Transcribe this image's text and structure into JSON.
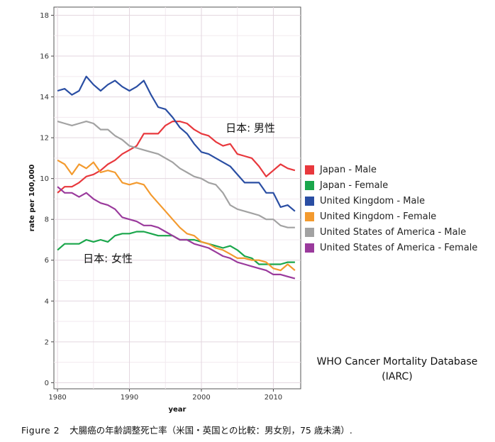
{
  "chart_data": {
    "type": "line",
    "title": "",
    "xlabel": "year",
    "ylabel": "rate per 100,000",
    "xlim": [
      1979.5,
      2013.8
    ],
    "ylim": [
      -0.3,
      18.4
    ],
    "xticks": [
      1980,
      1990,
      2000,
      2010
    ],
    "yticks": [
      0,
      2,
      4,
      6,
      8,
      10,
      12,
      14,
      16,
      18
    ],
    "x": [
      1980,
      1981,
      1982,
      1983,
      1984,
      1985,
      1986,
      1987,
      1988,
      1989,
      1990,
      1991,
      1992,
      1993,
      1994,
      1995,
      1996,
      1997,
      1998,
      1999,
      2000,
      2001,
      2002,
      2003,
      2004,
      2005,
      2006,
      2007,
      2008,
      2009,
      2010,
      2011,
      2012,
      2013
    ],
    "series": [
      {
        "name": "Japan - Male",
        "color": "#e8383d",
        "values": [
          9.3,
          9.6,
          9.6,
          9.8,
          10.1,
          10.2,
          10.4,
          10.7,
          10.9,
          11.2,
          11.4,
          11.6,
          12.2,
          12.2,
          12.2,
          12.6,
          12.8,
          12.8,
          12.7,
          12.4,
          12.2,
          12.1,
          11.8,
          11.6,
          11.7,
          11.2,
          11.1,
          11.0,
          10.6,
          10.1,
          10.4,
          10.7,
          10.5,
          10.4
        ]
      },
      {
        "name": "Japan - Female",
        "color": "#1aa64b",
        "values": [
          6.5,
          6.8,
          6.8,
          6.8,
          7.0,
          6.9,
          7.0,
          6.9,
          7.2,
          7.3,
          7.3,
          7.4,
          7.4,
          7.3,
          7.2,
          7.2,
          7.2,
          7.0,
          7.0,
          7.0,
          6.9,
          6.8,
          6.7,
          6.6,
          6.7,
          6.5,
          6.2,
          6.1,
          5.8,
          5.8,
          5.8,
          5.8,
          5.9,
          5.9
        ]
      },
      {
        "name": "United Kingdom - Male",
        "color": "#2a4ea3",
        "values": [
          14.3,
          14.4,
          14.1,
          14.3,
          15.0,
          14.6,
          14.3,
          14.6,
          14.8,
          14.5,
          14.3,
          14.5,
          14.8,
          14.1,
          13.5,
          13.4,
          13.0,
          12.5,
          12.2,
          11.7,
          11.3,
          11.2,
          11.0,
          10.8,
          10.6,
          10.2,
          9.8,
          9.8,
          9.8,
          9.3,
          9.3,
          8.6,
          8.7,
          8.4
        ]
      },
      {
        "name": "United Kingdom - Female",
        "color": "#f39a2e",
        "values": [
          10.9,
          10.7,
          10.2,
          10.7,
          10.5,
          10.8,
          10.3,
          10.4,
          10.3,
          9.8,
          9.7,
          9.8,
          9.7,
          9.2,
          8.8,
          8.4,
          8.0,
          7.6,
          7.3,
          7.2,
          6.9,
          6.8,
          6.6,
          6.5,
          6.3,
          6.1,
          6.1,
          6.0,
          6.0,
          5.9,
          5.6,
          5.5,
          5.8,
          5.5
        ]
      },
      {
        "name": "United States of America - Male",
        "color": "#a2a2a2",
        "values": [
          12.8,
          12.7,
          12.6,
          12.7,
          12.8,
          12.7,
          12.4,
          12.4,
          12.1,
          11.9,
          11.6,
          11.5,
          11.4,
          11.3,
          11.2,
          11.0,
          10.8,
          10.5,
          10.3,
          10.1,
          10.0,
          9.8,
          9.7,
          9.3,
          8.7,
          8.5,
          8.4,
          8.3,
          8.2,
          8.0,
          8.0,
          7.7,
          7.6,
          7.6
        ]
      },
      {
        "name": "United States of America - Female",
        "color": "#9a3a9c",
        "values": [
          9.6,
          9.3,
          9.3,
          9.1,
          9.3,
          9.0,
          8.8,
          8.7,
          8.5,
          8.1,
          8.0,
          7.9,
          7.7,
          7.7,
          7.6,
          7.4,
          7.2,
          7.0,
          7.0,
          6.8,
          6.7,
          6.6,
          6.4,
          6.2,
          6.1,
          5.9,
          5.8,
          5.7,
          5.6,
          5.5,
          5.3,
          5.3,
          5.2,
          5.1
        ]
      }
    ],
    "annotations": [
      {
        "text": "日本: 男性",
        "x": 2006.8,
        "y": 12.3
      },
      {
        "text": "日本: 女性",
        "x": 1987.0,
        "y": 5.9
      }
    ],
    "legend_position": "right",
    "grid": true
  },
  "source": {
    "line1": "WHO Cancer Mortality Database",
    "line2": "(IARC)"
  },
  "caption": {
    "figure": "Figure 2",
    "text": "大腸癌の年齢調整死亡率（米国・英国との比較：男女別，75 歳未満）."
  }
}
